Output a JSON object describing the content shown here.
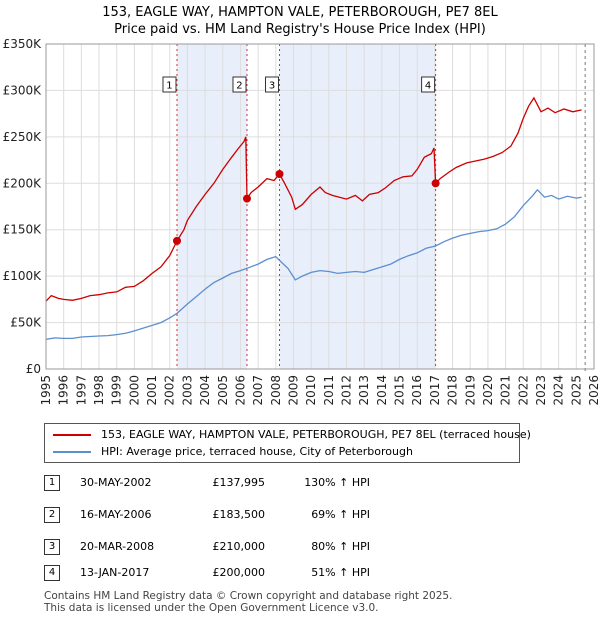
{
  "title": {
    "line1": "153, EAGLE WAY, HAMPTON VALE, PETERBOROUGH, PE7 8EL",
    "line2": "Price paid vs. HM Land Registry's House Price Index (HPI)"
  },
  "legend": {
    "items": [
      {
        "label": "153, EAGLE WAY, HAMPTON VALE, PETERBOROUGH, PE7 8EL (terraced house)",
        "color": "#cc0000"
      },
      {
        "label": "HPI: Average price, terraced house, City of Peterborough",
        "color": "#5b8fd0"
      }
    ]
  },
  "sales": [
    {
      "num": "1",
      "date": "30-MAY-2002",
      "price": "£137,995",
      "hpi": "130% ↑ HPI"
    },
    {
      "num": "2",
      "date": "16-MAY-2006",
      "price": "£183,500",
      "hpi": "69% ↑ HPI"
    },
    {
      "num": "3",
      "date": "20-MAR-2008",
      "price": "£210,000",
      "hpi": "80% ↑ HPI"
    },
    {
      "num": "4",
      "date": "13-JAN-2017",
      "price": "£200,000",
      "hpi": "51% ↑ HPI"
    }
  ],
  "footer": {
    "line1": "Contains HM Land Registry data © Crown copyright and database right 2025.",
    "line2": "This data is licensed under the Open Government Licence v3.0."
  },
  "chart_data": {
    "type": "line",
    "xlim": [
      1995,
      2026
    ],
    "ylim": [
      0,
      350000
    ],
    "yticks": [
      {
        "value": 0,
        "label": "£0"
      },
      {
        "value": 50000,
        "label": "£50K"
      },
      {
        "value": 100000,
        "label": "£100K"
      },
      {
        "value": 150000,
        "label": "£150K"
      },
      {
        "value": 200000,
        "label": "£200K"
      },
      {
        "value": 250000,
        "label": "£250K"
      },
      {
        "value": 300000,
        "label": "£300K"
      },
      {
        "value": 350000,
        "label": "£350K"
      }
    ],
    "xticks": [
      "1995",
      "1996",
      "1997",
      "1998",
      "1999",
      "2000",
      "2001",
      "2002",
      "2003",
      "2004",
      "2005",
      "2006",
      "2007",
      "2008",
      "2009",
      "2010",
      "2011",
      "2012",
      "2013",
      "2014",
      "2015",
      "2016",
      "2017",
      "2018",
      "2019",
      "2020",
      "2021",
      "2022",
      "2023",
      "2024",
      "2025",
      "2026"
    ],
    "shaded_ranges": [
      [
        2002.41,
        2006.37
      ],
      [
        2008.21,
        2017.04
      ]
    ],
    "data_end": 2025.5,
    "colors": {
      "property": "#cc0000",
      "hpi": "#5b8fd0",
      "grid": "#dddddd",
      "shade": "#e8eefa",
      "marker_line": "#cc0000"
    },
    "series": [
      {
        "name": "153, EAGLE WAY, HAMPTON VALE, PETERBOROUGH, PE7 8EL (terraced house)",
        "color": "#cc0000",
        "points": [
          [
            1995.0,
            73000
          ],
          [
            1995.3,
            79000
          ],
          [
            1995.7,
            76000
          ],
          [
            1996.0,
            75000
          ],
          [
            1996.5,
            74000
          ],
          [
            1997.0,
            76000
          ],
          [
            1997.5,
            79000
          ],
          [
            1998.0,
            80000
          ],
          [
            1998.5,
            82000
          ],
          [
            1999.0,
            83000
          ],
          [
            1999.5,
            88000
          ],
          [
            2000.0,
            89000
          ],
          [
            2000.5,
            95000
          ],
          [
            2001.0,
            103000
          ],
          [
            2001.5,
            110000
          ],
          [
            2002.0,
            122000
          ],
          [
            2002.41,
            137995
          ],
          [
            2002.8,
            150000
          ],
          [
            2003.0,
            160000
          ],
          [
            2003.5,
            175000
          ],
          [
            2004.0,
            188000
          ],
          [
            2004.5,
            200000
          ],
          [
            2005.0,
            215000
          ],
          [
            2005.5,
            228000
          ],
          [
            2005.9,
            238000
          ],
          [
            2006.2,
            245000
          ],
          [
            2006.3,
            250000
          ],
          [
            2006.37,
            183500
          ],
          [
            2006.6,
            190000
          ],
          [
            2007.0,
            196000
          ],
          [
            2007.5,
            205000
          ],
          [
            2007.9,
            203000
          ],
          [
            2008.21,
            210000
          ],
          [
            2008.5,
            200000
          ],
          [
            2008.9,
            185000
          ],
          [
            2009.1,
            172000
          ],
          [
            2009.5,
            177000
          ],
          [
            2010.0,
            188000
          ],
          [
            2010.5,
            196000
          ],
          [
            2010.8,
            190000
          ],
          [
            2011.2,
            187000
          ],
          [
            2011.6,
            185000
          ],
          [
            2012.0,
            183000
          ],
          [
            2012.5,
            187000
          ],
          [
            2012.9,
            181000
          ],
          [
            2013.3,
            188000
          ],
          [
            2013.8,
            190000
          ],
          [
            2014.2,
            195000
          ],
          [
            2014.7,
            203000
          ],
          [
            2015.2,
            207000
          ],
          [
            2015.7,
            208000
          ],
          [
            2016.0,
            215000
          ],
          [
            2016.4,
            228000
          ],
          [
            2016.8,
            232000
          ],
          [
            2016.95,
            238000
          ],
          [
            2017.04,
            200000
          ],
          [
            2017.3,
            205000
          ],
          [
            2017.8,
            212000
          ],
          [
            2018.2,
            217000
          ],
          [
            2018.8,
            222000
          ],
          [
            2019.3,
            224000
          ],
          [
            2019.8,
            226000
          ],
          [
            2020.3,
            229000
          ],
          [
            2020.8,
            233000
          ],
          [
            2021.3,
            240000
          ],
          [
            2021.7,
            254000
          ],
          [
            2022.0,
            270000
          ],
          [
            2022.3,
            283000
          ],
          [
            2022.6,
            292000
          ],
          [
            2023.0,
            277000
          ],
          [
            2023.4,
            281000
          ],
          [
            2023.8,
            276000
          ],
          [
            2024.3,
            280000
          ],
          [
            2024.8,
            277000
          ],
          [
            2025.3,
            279000
          ]
        ]
      },
      {
        "name": "HPI: Average price, terraced house, City of Peterborough",
        "color": "#5b8fd0",
        "points": [
          [
            1995.0,
            32000
          ],
          [
            1995.5,
            33500
          ],
          [
            1996.0,
            33000
          ],
          [
            1996.5,
            33000
          ],
          [
            1997.0,
            34500
          ],
          [
            1997.5,
            35000
          ],
          [
            1998.0,
            35500
          ],
          [
            1998.5,
            36000
          ],
          [
            1999.0,
            37000
          ],
          [
            1999.5,
            38500
          ],
          [
            2000.0,
            41000
          ],
          [
            2000.5,
            44000
          ],
          [
            2001.0,
            47000
          ],
          [
            2001.5,
            50000
          ],
          [
            2002.0,
            55000
          ],
          [
            2002.41,
            60000
          ],
          [
            2003.0,
            70000
          ],
          [
            2003.5,
            78000
          ],
          [
            2004.0,
            86000
          ],
          [
            2004.5,
            93000
          ],
          [
            2005.0,
            98000
          ],
          [
            2005.5,
            103000
          ],
          [
            2006.0,
            106000
          ],
          [
            2006.37,
            108500
          ],
          [
            2007.0,
            113000
          ],
          [
            2007.5,
            118000
          ],
          [
            2008.0,
            121000
          ],
          [
            2008.21,
            117000
          ],
          [
            2008.7,
            108000
          ],
          [
            2009.1,
            96000
          ],
          [
            2009.5,
            100000
          ],
          [
            2010.0,
            104000
          ],
          [
            2010.5,
            106000
          ],
          [
            2011.0,
            105000
          ],
          [
            2011.5,
            103000
          ],
          [
            2012.0,
            104000
          ],
          [
            2012.5,
            105000
          ],
          [
            2013.0,
            104000
          ],
          [
            2013.5,
            107000
          ],
          [
            2014.0,
            110000
          ],
          [
            2014.5,
            113000
          ],
          [
            2015.0,
            118000
          ],
          [
            2015.5,
            122000
          ],
          [
            2016.0,
            125000
          ],
          [
            2016.5,
            130000
          ],
          [
            2017.04,
            132500
          ],
          [
            2017.5,
            137000
          ],
          [
            2018.0,
            141000
          ],
          [
            2018.5,
            144000
          ],
          [
            2019.0,
            146000
          ],
          [
            2019.5,
            148000
          ],
          [
            2020.0,
            149000
          ],
          [
            2020.5,
            151000
          ],
          [
            2021.0,
            156000
          ],
          [
            2021.5,
            164000
          ],
          [
            2022.0,
            176000
          ],
          [
            2022.5,
            186000
          ],
          [
            2022.8,
            193000
          ],
          [
            2023.2,
            185000
          ],
          [
            2023.6,
            187000
          ],
          [
            2024.0,
            183000
          ],
          [
            2024.5,
            186000
          ],
          [
            2025.0,
            184000
          ],
          [
            2025.3,
            185000
          ]
        ]
      }
    ],
    "markers": [
      {
        "label": "1",
        "x": 2002.41,
        "y": 137995
      },
      {
        "label": "2",
        "x": 2006.37,
        "y": 183500
      },
      {
        "label": "3",
        "x": 2008.21,
        "y": 210000
      },
      {
        "label": "4",
        "x": 2017.04,
        "y": 200000
      }
    ]
  }
}
